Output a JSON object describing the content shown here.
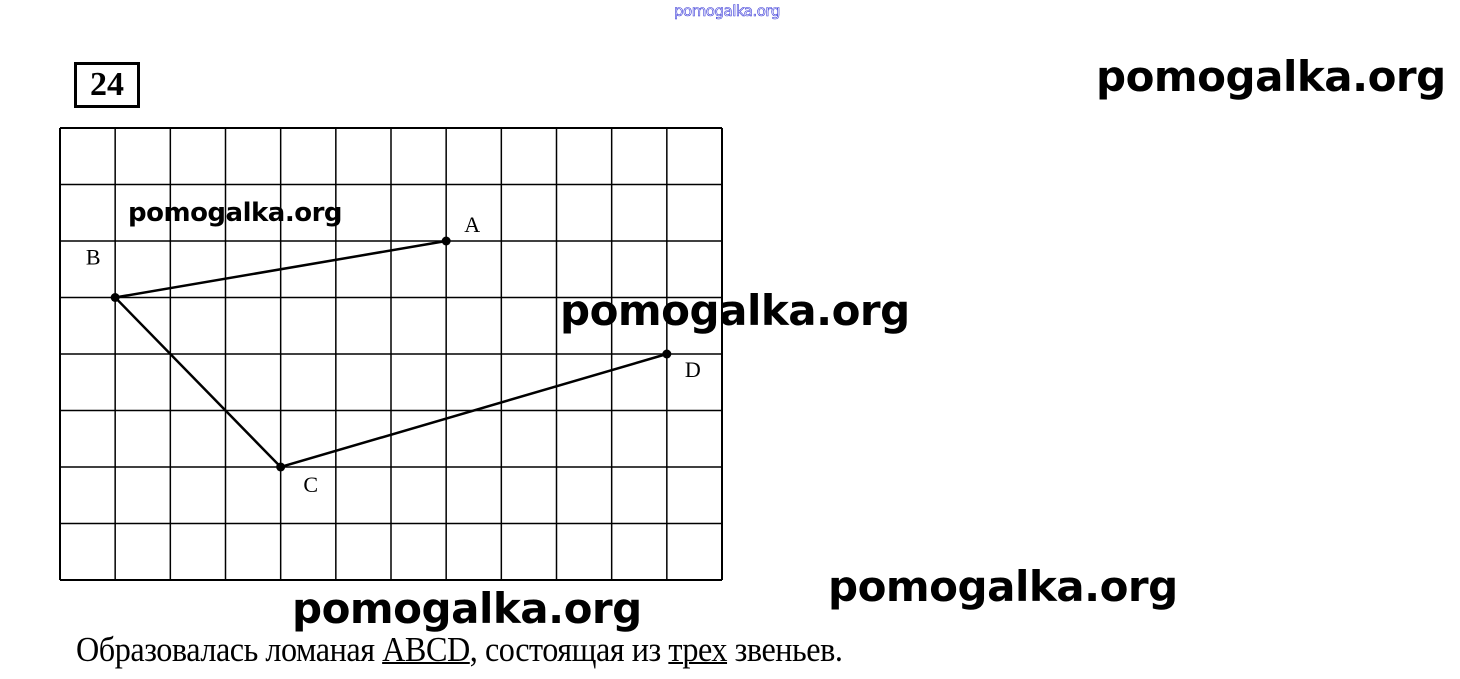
{
  "header": {
    "site_watermark": "pomogalka.org",
    "problem_number": "24"
  },
  "watermarks": [
    "pomogalka.org",
    "pomogalka.org",
    "pomogalka.org",
    "pomogalka.org",
    "pomogalka.org"
  ],
  "diagram": {
    "grid": {
      "columns": 12,
      "rows": 8
    },
    "points": [
      {
        "label": "A",
        "col": 7,
        "row": 2
      },
      {
        "label": "B",
        "col": 1,
        "row": 3
      },
      {
        "label": "C",
        "col": 4,
        "row": 6
      },
      {
        "label": "D",
        "col": 11,
        "row": 4
      }
    ],
    "polyline": [
      "A",
      "B",
      "C",
      "D"
    ]
  },
  "caption": {
    "before": "Образовалась ломаная ",
    "name": "ABCD",
    "middle": ", состоящая из ",
    "count": "трех",
    "after": " звеньев."
  }
}
